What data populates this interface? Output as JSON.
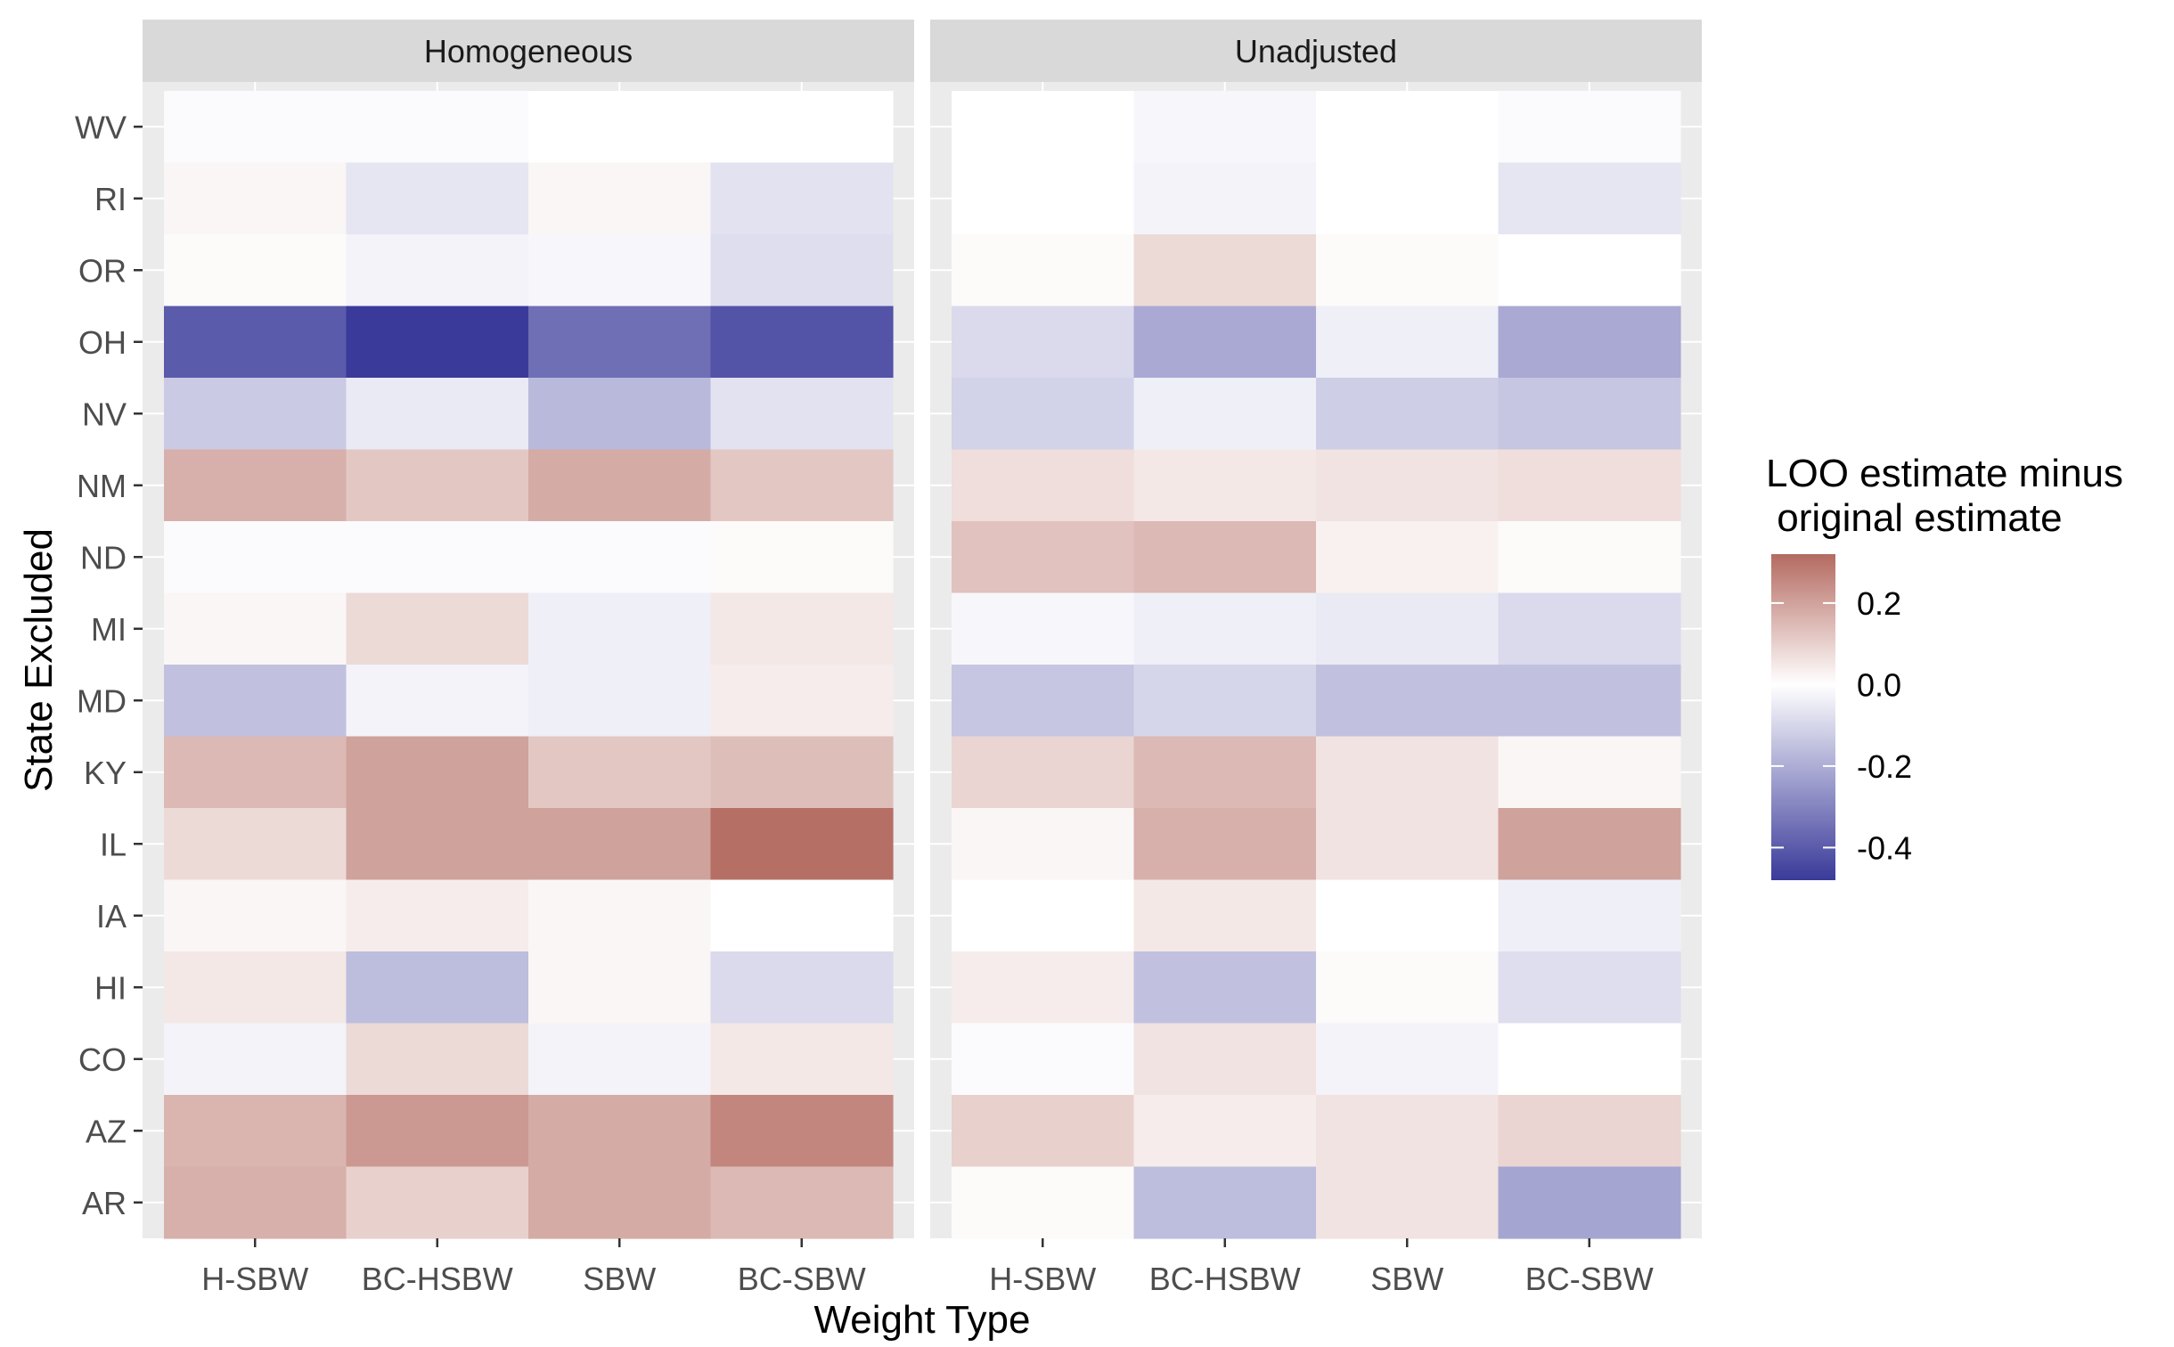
{
  "chart_data": {
    "type": "heatmap",
    "xlabel": "Weight Type",
    "ylabel": "State Excluded",
    "x_categories": [
      "H-SBW",
      "BC-HSBW",
      "SBW",
      "BC-SBW"
    ],
    "y_categories": [
      "WV",
      "RI",
      "OR",
      "OH",
      "NV",
      "NM",
      "ND",
      "MI",
      "MD",
      "KY",
      "IL",
      "IA",
      "HI",
      "CO",
      "AZ",
      "AR"
    ],
    "facets": [
      {
        "name": "Homogeneous",
        "values": [
          [
            -0.01,
            -0.01,
            0.0,
            0.0
          ],
          [
            0.02,
            -0.06,
            0.02,
            -0.07
          ],
          [
            0.01,
            -0.03,
            -0.02,
            -0.08
          ],
          [
            -0.4,
            -0.48,
            -0.35,
            -0.42
          ],
          [
            -0.13,
            -0.05,
            -0.17,
            -0.07
          ],
          [
            0.17,
            0.12,
            0.18,
            0.12
          ],
          [
            -0.01,
            -0.01,
            -0.01,
            0.01
          ],
          [
            0.02,
            0.08,
            -0.04,
            0.05
          ],
          [
            -0.15,
            -0.03,
            -0.04,
            0.04
          ],
          [
            0.15,
            0.2,
            0.12,
            0.14
          ],
          [
            0.08,
            0.2,
            0.2,
            0.31
          ],
          [
            0.02,
            0.04,
            0.02,
            0.0
          ],
          [
            0.05,
            -0.16,
            0.02,
            -0.09
          ],
          [
            -0.03,
            0.08,
            -0.03,
            0.05
          ],
          [
            0.16,
            0.22,
            0.18,
            0.26
          ],
          [
            0.17,
            0.1,
            0.18,
            0.15
          ]
        ]
      },
      {
        "name": "Unadjusted",
        "values": [
          [
            0.0,
            -0.02,
            0.0,
            -0.01
          ],
          [
            0.0,
            -0.03,
            0.0,
            -0.06
          ],
          [
            0.01,
            0.08,
            0.01,
            0.0
          ],
          [
            -0.09,
            -0.21,
            -0.04,
            -0.21
          ],
          [
            -0.11,
            -0.04,
            -0.12,
            -0.14
          ],
          [
            0.07,
            0.05,
            0.06,
            0.07
          ],
          [
            0.13,
            0.15,
            0.03,
            0.01
          ],
          [
            -0.02,
            -0.04,
            -0.05,
            -0.09
          ],
          [
            -0.14,
            -0.1,
            -0.15,
            -0.15
          ],
          [
            0.09,
            0.15,
            0.06,
            0.02
          ],
          [
            0.02,
            0.17,
            0.06,
            0.2
          ],
          [
            0.0,
            0.05,
            0.0,
            -0.04
          ],
          [
            0.04,
            -0.15,
            0.01,
            -0.08
          ],
          [
            -0.01,
            0.06,
            -0.03,
            0.0
          ],
          [
            0.1,
            0.04,
            0.06,
            0.09
          ],
          [
            0.01,
            -0.16,
            0.06,
            -0.22
          ]
        ]
      }
    ],
    "legend": {
      "title_line1": "LOO estimate minus",
      "title_line2": " original estimate",
      "ticks": [
        0.2,
        0.0,
        -0.2,
        -0.4
      ],
      "tick_labels": [
        "0.2",
        "0.0",
        "-0.2",
        "-0.4"
      ],
      "range": [
        -0.48,
        0.32
      ],
      "position": "right"
    },
    "colors": {
      "low": "#3a3a9a",
      "mid": "#ffffff",
      "high": "#b46a60",
      "panel_background": "#ebebeb",
      "strip_background": "#d9d9d9",
      "grid": "#ffffff"
    }
  }
}
